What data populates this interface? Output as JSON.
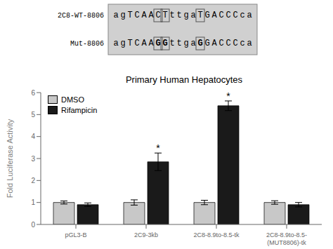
{
  "chart_data": {
    "type": "bar",
    "title": "Primary Human Hepatocytes",
    "y_label": "Fold Luciferase Activity",
    "categories": [
      "pGL3-B",
      "2C9-3kb",
      "2C8-8.9to-8.5-tk",
      "2C8-8.9to-8.5-\n(MUT8806)-tk"
    ],
    "series": [
      {
        "name": "DMSO",
        "color": "#c8c8c8",
        "values": [
          1.0,
          1.0,
          1.0,
          1.0
        ],
        "errors": [
          0.07,
          0.12,
          0.1,
          0.08
        ]
      },
      {
        "name": "Rifampicin",
        "color": "#1a1a1a",
        "values": [
          0.9,
          2.85,
          5.4,
          0.9
        ],
        "errors": [
          0.08,
          0.4,
          0.22,
          0.1
        ]
      }
    ],
    "ylim": [
      0,
      6
    ],
    "yticks": [
      0,
      1,
      2,
      3,
      4,
      5,
      6
    ],
    "grid": false,
    "legend": "upper left",
    "annotations": [
      {
        "label": "2C8-WT-8806",
        "text": "agTCAACTttgaTGACCCca"
      },
      {
        "label": "Mut-8806",
        "text": "agTCAAGGttgaGGACCCca"
      },
      {
        "text": "*",
        "series": "Rifampicin",
        "category": "2C9-3kb"
      },
      {
        "text": "*",
        "series": "Rifampicin",
        "category": "2C8-8.9to-8.5-tk"
      }
    ]
  }
}
